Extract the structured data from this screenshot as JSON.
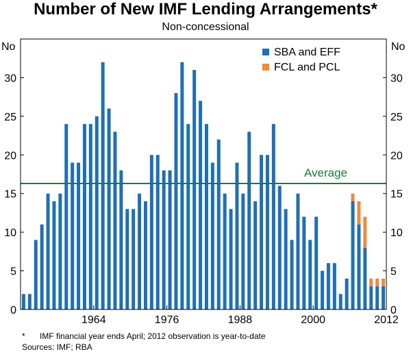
{
  "title": "Number of New IMF Lending Arrangements*",
  "subtitle": "Non-concessional",
  "footnote": {
    "marker": "*",
    "text": "IMF financial year ends April; 2012 observation is year-to-date"
  },
  "sources": "Sources: IMF; RBA",
  "colors": {
    "sba_eff": "#1f6fb5",
    "fcl_pcl": "#f08a3c",
    "average": "#1a7a3c",
    "axis": "#000000"
  },
  "chart_data": {
    "type": "bar",
    "stacked": true,
    "title": "Number of New IMF Lending Arrangements*",
    "subtitle": "Non-concessional",
    "ylabel_left": "No",
    "ylabel_right": "No",
    "ylim": [
      0,
      35
    ],
    "yticks": [
      0,
      5,
      10,
      15,
      20,
      25,
      30
    ],
    "xticks": [
      1964,
      1976,
      1988,
      2000,
      2012
    ],
    "x_range": [
      1952,
      2012
    ],
    "categories": [
      1953,
      1954,
      1955,
      1956,
      1957,
      1958,
      1959,
      1960,
      1961,
      1962,
      1963,
      1964,
      1965,
      1966,
      1967,
      1968,
      1969,
      1970,
      1971,
      1972,
      1973,
      1974,
      1975,
      1976,
      1977,
      1978,
      1979,
      1980,
      1981,
      1982,
      1983,
      1984,
      1985,
      1986,
      1987,
      1988,
      1989,
      1990,
      1991,
      1992,
      1993,
      1994,
      1995,
      1996,
      1997,
      1998,
      1999,
      2000,
      2001,
      2002,
      2003,
      2004,
      2005,
      2006,
      2007,
      2008,
      2009,
      2010,
      2011,
      2012
    ],
    "series": [
      {
        "name": "SBA and EFF",
        "color": "#1f6fb5",
        "values": [
          2,
          2,
          9,
          11,
          15,
          14,
          15,
          24,
          19,
          19,
          24,
          24,
          25,
          32,
          26,
          23,
          18,
          13,
          13,
          15,
          14,
          20,
          20,
          18,
          18,
          28,
          32,
          24,
          31,
          27,
          24,
          19,
          22,
          15,
          13,
          19,
          15,
          23,
          14,
          20,
          20,
          24,
          16,
          13,
          9,
          15,
          12,
          9,
          12,
          5,
          6,
          6,
          2,
          4,
          14,
          11,
          8,
          3,
          3,
          3
        ]
      },
      {
        "name": "FCL and PCL",
        "color": "#f08a3c",
        "values": [
          0,
          0,
          0,
          0,
          0,
          0,
          0,
          0,
          0,
          0,
          0,
          0,
          0,
          0,
          0,
          0,
          0,
          0,
          0,
          0,
          0,
          0,
          0,
          0,
          0,
          0,
          0,
          0,
          0,
          0,
          0,
          0,
          0,
          0,
          0,
          0,
          0,
          0,
          0,
          0,
          0,
          0,
          0,
          0,
          0,
          0,
          0,
          0,
          0,
          0,
          0,
          0,
          0,
          0,
          1,
          3,
          4,
          1,
          1,
          1
        ]
      }
    ],
    "average": {
      "value": 16.3,
      "label": "Average"
    },
    "legend_position": "top-right"
  }
}
